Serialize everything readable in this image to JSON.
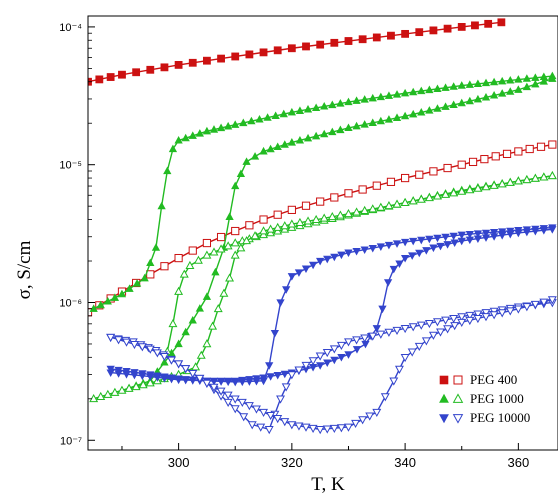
{
  "chart_data": {
    "type": "scatter",
    "xlabel": "T, K",
    "ylabel": "σ, S/cm",
    "x_ticks": [
      300,
      320,
      340,
      360
    ],
    "y_ticks": [
      "10⁻⁷",
      "10⁻⁶",
      "10⁻⁵",
      "10⁻⁴"
    ],
    "y_tick_values": [
      1e-07,
      1e-06,
      1e-05,
      0.0001
    ],
    "xlim": [
      284,
      367
    ],
    "ylim": [
      8.5e-08,
      0.00012
    ],
    "y_scale": "log",
    "grid": false,
    "legend_position": "bottom-right",
    "legend": [
      {
        "label": "PEG 400",
        "color": "#cc1111",
        "marker": "square"
      },
      {
        "label": "PEG 1000",
        "color": "#22bb22",
        "marker": "triangle-up"
      },
      {
        "label": "PEG 10000",
        "color": "#3344cc",
        "marker": "triangle-down"
      }
    ],
    "series": [
      {
        "legend": "PEG 400",
        "fill": "filled",
        "color": "#cc1111",
        "marker": "square",
        "x": [
          284,
          290,
          300,
          310,
          320,
          330,
          340,
          350,
          357
        ],
        "y": [
          4e-05,
          4.5e-05,
          5.3e-05,
          6.1e-05,
          7e-05,
          7.9e-05,
          8.9e-05,
          0.0001,
          0.000108
        ]
      },
      {
        "legend": "PEG 400",
        "fill": "open",
        "color": "#cc1111",
        "marker": "square",
        "x": [
          284,
          290,
          295,
          300,
          305,
          310,
          315,
          320,
          330,
          340,
          350,
          356,
          362,
          366
        ],
        "y": [
          8.5e-07,
          1.2e-06,
          1.6e-06,
          2.1e-06,
          2.7e-06,
          3.3e-06,
          4e-06,
          4.7e-06,
          6.2e-06,
          8e-06,
          1e-05,
          1.15e-05,
          1.3e-05,
          1.4e-05
        ]
      },
      {
        "legend": "PEG 1000",
        "fill": "filled",
        "color": "#22bb22",
        "marker": "triangle-up",
        "x": [
          285,
          290,
          294,
          296,
          297,
          298,
          299,
          300,
          305,
          310,
          320,
          330,
          340,
          350,
          360,
          366
        ],
        "y": [
          9e-07,
          1.15e-06,
          1.5e-06,
          2.5e-06,
          5e-06,
          9e-06,
          1.3e-05,
          1.5e-05,
          1.75e-05,
          1.95e-05,
          2.4e-05,
          2.85e-05,
          3.3e-05,
          3.75e-05,
          4.15e-05,
          4.4e-05
        ]
      },
      {
        "legend": "PEG 1000",
        "fill": "filled",
        "color": "#22bb22",
        "marker": "triangle-up",
        "x": [
          285,
          290,
          295,
          300,
          305,
          308,
          310,
          312,
          315,
          320,
          330,
          340,
          350,
          360,
          366
        ],
        "y": [
          2e-07,
          2.3e-07,
          2.7e-07,
          5e-07,
          1.1e-06,
          2.5e-06,
          7e-06,
          1.05e-05,
          1.25e-05,
          1.45e-05,
          1.85e-05,
          2.25e-05,
          2.8e-05,
          3.5e-05,
          4.2e-05
        ]
      },
      {
        "legend": "PEG 1000",
        "fill": "open",
        "color": "#22bb22",
        "marker": "triangle-up",
        "x": [
          298,
          299,
          300,
          301,
          302,
          305,
          310,
          315,
          320,
          330,
          340,
          350,
          360,
          366
        ],
        "y": [
          4.4e-07,
          7e-07,
          1.2e-06,
          1.6e-06,
          1.85e-06,
          2.2e-06,
          2.7e-06,
          3.1e-06,
          3.5e-06,
          4.3e-06,
          5.3e-06,
          6.5e-06,
          7.6e-06,
          8.3e-06
        ]
      },
      {
        "legend": "PEG 1000",
        "fill": "open",
        "color": "#22bb22",
        "marker": "triangle-up",
        "x": [
          285,
          290,
          295,
          300,
          303,
          305,
          307,
          309,
          310,
          312,
          315,
          320,
          330,
          340,
          350,
          360,
          366
        ],
        "y": [
          2e-07,
          2.3e-07,
          2.6e-07,
          3e-07,
          3.4e-07,
          5e-07,
          9e-07,
          1.5e-06,
          2.2e-06,
          2.8e-06,
          3.3e-06,
          3.7e-06,
          4.4e-06,
          5.3e-06,
          6.4e-06,
          7.6e-06,
          8.3e-06
        ]
      },
      {
        "legend": "PEG 10000",
        "fill": "filled",
        "color": "#3344cc",
        "marker": "triangle-down",
        "x": [
          288,
          295,
          300,
          305,
          310,
          315,
          316,
          317,
          318,
          320,
          325,
          330,
          340,
          350,
          360,
          366
        ],
        "y": [
          3.3e-07,
          3e-07,
          2.8e-07,
          2.7e-07,
          2.65e-07,
          2.7e-07,
          3.5e-07,
          6e-07,
          1e-06,
          1.55e-06,
          2e-06,
          2.3e-06,
          2.75e-06,
          3.1e-06,
          3.35e-06,
          3.5e-06
        ]
      },
      {
        "legend": "PEG 10000",
        "fill": "filled",
        "color": "#3344cc",
        "marker": "triangle-down",
        "x": [
          288,
          295,
          300,
          305,
          310,
          315,
          320,
          325,
          330,
          333,
          335,
          336,
          337,
          338,
          340,
          345,
          350,
          360,
          366
        ],
        "y": [
          3.1e-07,
          2.9e-07,
          2.75e-07,
          2.7e-07,
          2.7e-07,
          2.85e-07,
          3.1e-07,
          3.5e-07,
          4.2e-07,
          5e-07,
          6.5e-07,
          9e-07,
          1.4e-06,
          1.75e-06,
          2.1e-06,
          2.5e-06,
          2.8e-06,
          3.2e-06,
          3.4e-06
        ]
      },
      {
        "legend": "PEG 10000",
        "fill": "open",
        "color": "#3344cc",
        "marker": "triangle-down",
        "x": [
          288,
          292,
          296,
          300,
          305,
          310,
          313,
          316,
          318,
          320,
          325,
          330,
          340,
          350,
          360,
          366
        ],
        "y": [
          5.6e-07,
          5.2e-07,
          4.5e-07,
          3.6e-07,
          2.6e-07,
          1.7e-07,
          1.3e-07,
          1.2e-07,
          2e-07,
          3e-07,
          4.1e-07,
          5.2e-07,
          6.5e-07,
          7.9e-07,
          9.3e-07,
          1e-06
        ]
      },
      {
        "legend": "PEG 10000",
        "fill": "open",
        "color": "#3344cc",
        "marker": "triangle-down",
        "x": [
          288,
          295,
          300,
          305,
          310,
          315,
          320,
          325,
          330,
          335,
          338,
          340,
          345,
          350,
          360,
          366
        ],
        "y": [
          5.6e-07,
          4.6e-07,
          3.6e-07,
          2.6e-07,
          2e-07,
          1.6e-07,
          1.3e-07,
          1.2e-07,
          1.25e-07,
          1.6e-07,
          2.7e-07,
          4e-07,
          5.8e-07,
          7.2e-07,
          9e-07,
          1.05e-06
        ]
      }
    ]
  }
}
